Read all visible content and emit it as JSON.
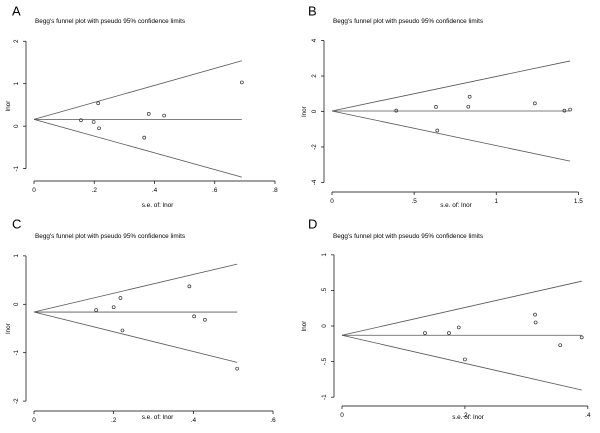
{
  "chart_data": [
    {
      "panel": "A",
      "type": "scatter",
      "title": "Begg's funnel plot with pseudo 95% confidence limits",
      "xlabel": "s.e. of: lnor",
      "ylabel": "lnor",
      "xlim": [
        0,
        0.82
      ],
      "ylim": [
        -1.15,
        2.1
      ],
      "xticks": [
        0,
        0.2,
        0.4,
        0.6,
        0.8
      ],
      "xtick_labels": [
        "0",
        ".2",
        ".4",
        ".6",
        ".8"
      ],
      "yticks": [
        -1,
        0,
        1,
        2
      ],
      "ytick_labels": [
        "-1",
        "0",
        "1",
        "2"
      ],
      "pooled": 0.16,
      "funnel_xmax": 0.69,
      "funnel_upper_end": 1.54,
      "funnel_lower_end": -1.2,
      "points": {
        "x": [
          0.156,
          0.198,
          0.213,
          0.216,
          0.366,
          0.381,
          0.432,
          0.69
        ],
        "y": [
          0.14,
          0.1,
          0.54,
          -0.05,
          -0.27,
          0.29,
          0.25,
          1.03
        ]
      }
    },
    {
      "panel": "B",
      "type": "scatter",
      "title": "Begg's funnel plot with pseudo 95% confidence limits",
      "xlabel": "s.e. of: lnor",
      "ylabel": "lnor",
      "xlim": [
        0,
        1.51
      ],
      "ylim": [
        -4.2,
        4.2
      ],
      "xticks": [
        0,
        0.5,
        1,
        1.5
      ],
      "xtick_labels": [
        "0",
        ".5",
        "1",
        "1.5"
      ],
      "yticks": [
        -4,
        -2,
        0,
        2,
        4
      ],
      "ytick_labels": [
        "-4",
        "-2",
        "0",
        "2",
        "4"
      ],
      "pooled": 0.03,
      "funnel_xmax": 1.45,
      "funnel_upper_end": 2.85,
      "funnel_lower_end": -2.8,
      "points": {
        "x": [
          0.391,
          0.633,
          0.641,
          0.83,
          0.838,
          1.235,
          1.415,
          1.45
        ],
        "y": [
          0.05,
          0.26,
          -1.07,
          0.27,
          0.83,
          0.46,
          0.05,
          0.11
        ]
      }
    },
    {
      "panel": "C",
      "type": "scatter",
      "title": "Begg's funnel plot with pseudo 95% confidence limits",
      "xlabel": "s.e. of: lnor",
      "ylabel": "lnor",
      "xlim": [
        0,
        0.62
      ],
      "ylim": [
        -2.08,
        1.08
      ],
      "xticks": [
        0,
        0.2,
        0.4,
        0.6
      ],
      "xtick_labels": [
        "0",
        ".2",
        ".4",
        ".6"
      ],
      "yticks": [
        -2,
        -1,
        0,
        1
      ],
      "ytick_labels": [
        "-2",
        "-1",
        "0",
        "1"
      ],
      "pooled": -0.16,
      "funnel_xmax": 0.51,
      "funnel_upper_end": 0.83,
      "funnel_lower_end": -1.2,
      "points": {
        "x": [
          0.156,
          0.2,
          0.217,
          0.222,
          0.39,
          0.402,
          0.429,
          0.51
        ],
        "y": [
          -0.12,
          -0.06,
          0.13,
          -0.54,
          0.37,
          -0.25,
          -0.32,
          -1.33
        ]
      }
    },
    {
      "panel": "D",
      "type": "scatter",
      "title": "Begg's funnel plot with pseudo 95% confidence limits",
      "xlabel": "s.e. of: lnor",
      "ylabel": "lnor",
      "xlim": [
        0,
        0.41
      ],
      "ylim": [
        -1.04,
        1.04
      ],
      "xticks": [
        0,
        0.2,
        0.4
      ],
      "xtick_labels": [
        "0",
        ".2",
        ".4"
      ],
      "yticks": [
        -1,
        -0.5,
        0,
        0.5,
        1
      ],
      "ytick_labels": [
        "-1",
        "-.5",
        "0",
        ".5",
        "1"
      ],
      "pooled": -0.13,
      "funnel_xmax": 0.39,
      "funnel_upper_end": 0.63,
      "funnel_lower_end": -0.9,
      "points": {
        "x": [
          0.135,
          0.174,
          0.19,
          0.2,
          0.314,
          0.315,
          0.355,
          0.39
        ],
        "y": [
          -0.1,
          -0.1,
          -0.02,
          -0.47,
          0.16,
          0.05,
          -0.27,
          -0.16
        ]
      }
    }
  ]
}
